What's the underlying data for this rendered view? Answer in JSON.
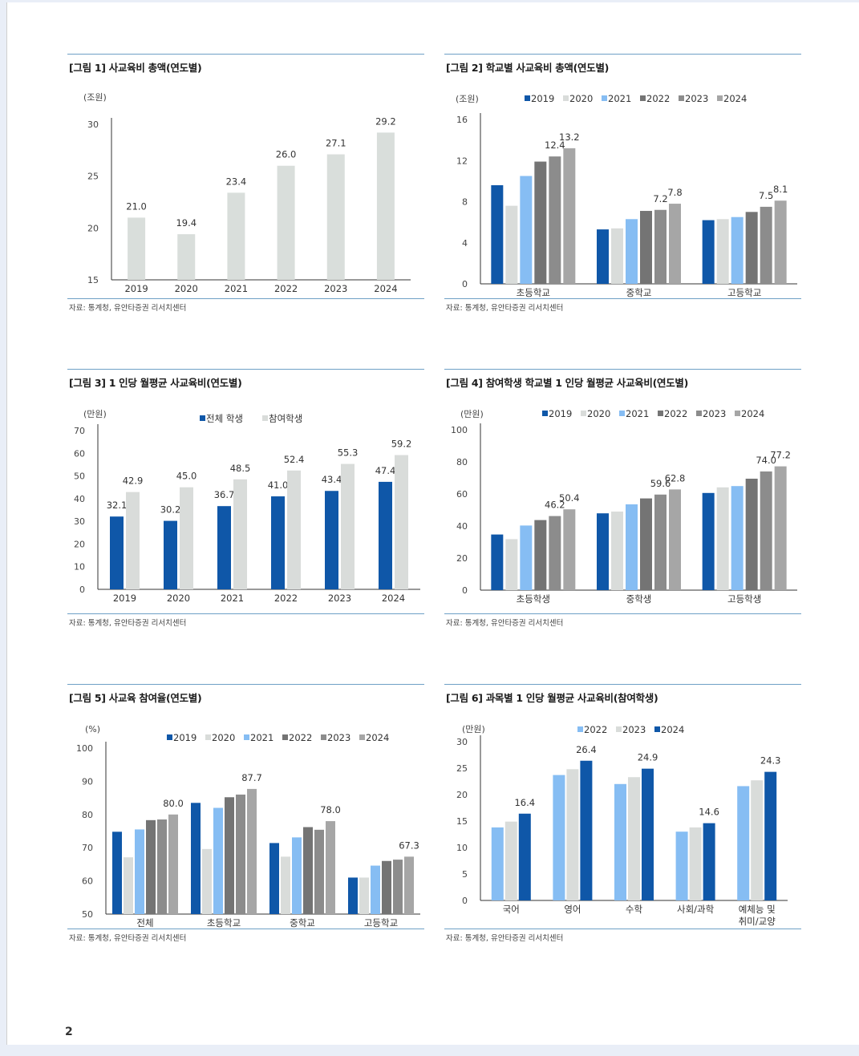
{
  "page_number": "2",
  "colors": {
    "2019": "#0f57a8",
    "2020": "#d9dcda",
    "2021": "#86bdf3",
    "2022": "#747474",
    "2023": "#8c8c8c",
    "2024": "#a6a6a6",
    "total_students": "#0f57a8",
    "participating": "#d9dcda",
    "single_series": "#d9dedb",
    "rule_line": "#6ea0c6"
  },
  "chart_data": [
    {
      "id": "fig1",
      "title": "[그림 1] 사교육비 총액(연도별)",
      "source": "자료: 통계청, 유안타증권 리서치센터",
      "type": "bar",
      "unit": "(조원)",
      "categories": [
        "2019",
        "2020",
        "2021",
        "2022",
        "2023",
        "2024"
      ],
      "series": [
        {
          "values": [
            21.0,
            19.4,
            23.4,
            26.0,
            27.1,
            29.2
          ],
          "labels": [
            "21.0",
            "19.4",
            "23.4",
            "26.0",
            "27.1",
            "29.2"
          ],
          "color_key": "single_series"
        }
      ],
      "ylim": [
        15,
        30
      ],
      "yticks": [
        "15",
        "20",
        "25",
        "30"
      ],
      "grid": false,
      "legend": null
    },
    {
      "id": "fig2",
      "title": "[그림 2] 학교별 사교육비 총액(연도별)",
      "source": "자료: 통계청, 유안타증권 리서치센터",
      "type": "bar",
      "unit": "(조원)",
      "categories": [
        "초등학교",
        "중학교",
        "고등학교"
      ],
      "series": [
        {
          "name": "2019",
          "values": [
            9.6,
            5.3,
            6.2
          ],
          "color_key": "2019"
        },
        {
          "name": "2020",
          "values": [
            7.6,
            5.4,
            6.3
          ],
          "color_key": "2020"
        },
        {
          "name": "2021",
          "values": [
            10.5,
            6.3,
            6.5
          ],
          "color_key": "2021"
        },
        {
          "name": "2022",
          "values": [
            11.9,
            7.1,
            7.0
          ],
          "color_key": "2022"
        },
        {
          "name": "2023",
          "values": [
            12.4,
            7.2,
            7.5
          ],
          "labels": [
            "12.4",
            "7.2",
            "7.5"
          ],
          "color_key": "2023"
        },
        {
          "name": "2024",
          "values": [
            13.2,
            7.8,
            8.1
          ],
          "labels": [
            "13.2",
            "7.8",
            "8.1"
          ],
          "color_key": "2024"
        }
      ],
      "ylim": [
        0,
        16
      ],
      "yticks": [
        "0",
        "4",
        "8",
        "12",
        "16"
      ],
      "grid": false,
      "legend": "top"
    },
    {
      "id": "fig3",
      "title": "[그림 3] 1 인당 월평균 사교육비(연도별)",
      "source": "자료: 통계청, 유안타증권 리서치센터",
      "type": "bar",
      "unit": "(만원)",
      "categories": [
        "2019",
        "2020",
        "2021",
        "2022",
        "2023",
        "2024"
      ],
      "series": [
        {
          "name": "전체 학생",
          "values": [
            32.1,
            30.2,
            36.7,
            41.0,
            43.4,
            47.4
          ],
          "labels": [
            "32.1",
            "30.2",
            "36.7",
            "41.0",
            "43.4",
            "47.4"
          ],
          "color_key": "total_students"
        },
        {
          "name": "참여학생",
          "values": [
            42.9,
            45.0,
            48.5,
            52.4,
            55.3,
            59.2
          ],
          "labels": [
            "42.9",
            "45.0",
            "48.5",
            "52.4",
            "55.3",
            "59.2"
          ],
          "color_key": "participating"
        }
      ],
      "ylim": [
        0,
        70
      ],
      "yticks": [
        "0",
        "10",
        "20",
        "30",
        "40",
        "50",
        "60",
        "70"
      ],
      "grid": false,
      "legend": "top"
    },
    {
      "id": "fig4",
      "title": "[그림 4] 참여학생 학교별 1 인당 월평균 사교육비(연도별)",
      "source": "자료: 통계청, 유안타증권 리서치센터",
      "type": "bar",
      "unit": "(만원)",
      "categories": [
        "초등학생",
        "중학생",
        "고등학생"
      ],
      "series": [
        {
          "name": "2019",
          "values": [
            34.7,
            47.9,
            60.6
          ],
          "color_key": "2019"
        },
        {
          "name": "2020",
          "values": [
            31.8,
            49.0,
            64.1
          ],
          "color_key": "2020"
        },
        {
          "name": "2021",
          "values": [
            40.3,
            53.5,
            64.9
          ],
          "color_key": "2021"
        },
        {
          "name": "2022",
          "values": [
            43.7,
            57.2,
            69.5
          ],
          "color_key": "2022"
        },
        {
          "name": "2023",
          "values": [
            46.2,
            59.6,
            74.0
          ],
          "labels": [
            "46.2",
            "59.6",
            "74.0"
          ],
          "color_key": "2023"
        },
        {
          "name": "2024",
          "values": [
            50.4,
            62.8,
            77.2
          ],
          "labels": [
            "50.4",
            "62.8",
            "77.2"
          ],
          "color_key": "2024"
        }
      ],
      "ylim": [
        0,
        100
      ],
      "yticks": [
        "0",
        "20",
        "40",
        "60",
        "80",
        "100"
      ],
      "grid": false,
      "legend": "top"
    },
    {
      "id": "fig5",
      "title": "[그림 5] 사교육 참여율(연도별)",
      "source": "자료: 통계청, 유안타증권 리서치센터",
      "type": "bar",
      "unit": "(%)",
      "categories": [
        "전체",
        "초등학교",
        "중학교",
        "고등학교"
      ],
      "series": [
        {
          "name": "2019",
          "values": [
            74.8,
            83.5,
            71.4,
            61.0
          ],
          "color_key": "2019"
        },
        {
          "name": "2020",
          "values": [
            67.1,
            69.6,
            67.3,
            61.0
          ],
          "color_key": "2020"
        },
        {
          "name": "2021",
          "values": [
            75.5,
            82.0,
            73.1,
            64.6
          ],
          "color_key": "2021"
        },
        {
          "name": "2022",
          "values": [
            78.3,
            85.2,
            76.2,
            66.0
          ],
          "color_key": "2022"
        },
        {
          "name": "2023",
          "values": [
            78.5,
            86.0,
            75.4,
            66.4
          ],
          "color_key": "2023"
        },
        {
          "name": "2024",
          "values": [
            80.0,
            87.7,
            78.0,
            67.3
          ],
          "labels": [
            "80.0",
            "87.7",
            "78.0",
            "67.3"
          ],
          "color_key": "2024"
        }
      ],
      "ylim": [
        50,
        100
      ],
      "yticks": [
        "50",
        "60",
        "70",
        "80",
        "90",
        "100"
      ],
      "grid": false,
      "legend": "top"
    },
    {
      "id": "fig6",
      "title": "[그림 6] 과목별 1 인당 월평균 사교육비(참여학생)",
      "source": "자료: 통계청, 유안타증권 리서치센터",
      "type": "bar",
      "unit": "(만원)",
      "categories": [
        "국어",
        "영어",
        "수학",
        "사회/과학",
        "예체능 및|취미/교양"
      ],
      "series": [
        {
          "name": "2022",
          "values": [
            13.8,
            23.7,
            22.0,
            13.0,
            21.6
          ],
          "color_key": "2021"
        },
        {
          "name": "2023",
          "values": [
            14.9,
            24.8,
            23.3,
            13.8,
            22.7
          ],
          "color_key": "2020"
        },
        {
          "name": "2024",
          "values": [
            16.4,
            26.4,
            24.9,
            14.6,
            24.3
          ],
          "labels": [
            "16.4",
            "26.4",
            "24.9",
            "14.6",
            "24.3"
          ],
          "color_key": "2019"
        }
      ],
      "ylim": [
        0,
        30
      ],
      "yticks": [
        "0",
        "5",
        "10",
        "15",
        "20",
        "25",
        "30"
      ],
      "grid": false,
      "legend": "top"
    }
  ]
}
